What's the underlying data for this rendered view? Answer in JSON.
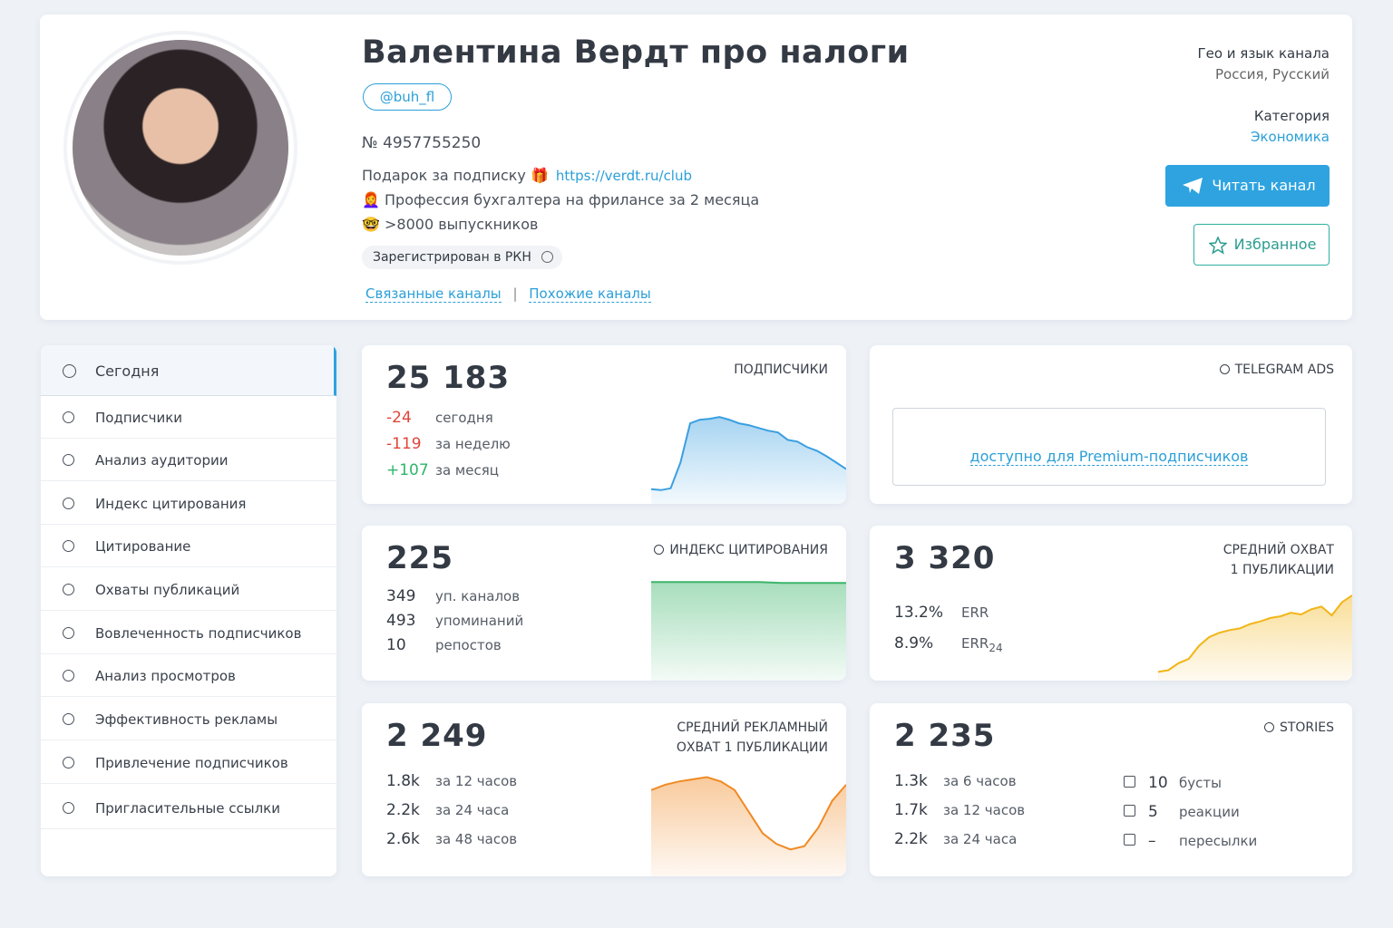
{
  "header": {
    "title": "Валентина Вердт про налоги",
    "username": "@buh_fl",
    "number": "№ 4957755250",
    "description": [
      {
        "text": "Подарок за подписку 🎁",
        "link": "https://verdt.ru/club"
      },
      {
        "text": "👩‍🦰 Профессия бухгалтера на фрилансе за 2 месяца"
      },
      {
        "text": "🤓 >8000 выпускников"
      }
    ],
    "badge": "Зарегистрирован в РКН",
    "links": [
      "Связанные каналы",
      "Похожие каналы"
    ],
    "geo_label": "Гео и язык канала",
    "geo_value": "Россия, Русский",
    "category_label": "Категория",
    "category_value": "Экономика",
    "read_button": "Читать канал",
    "favorite_button": "Избранное"
  },
  "sidebar": [
    "Сегодня",
    "Подписчики",
    "Анализ аудитории",
    "Индекс цитирования",
    "Цитирование",
    "Охваты публикаций",
    "Вовлеченность подписчиков",
    "Анализ просмотров",
    "Эффективность рекламы",
    "Привлечение подписчиков",
    "Пригласительные ссылки"
  ],
  "cards": {
    "subscribers": {
      "value": "25 183",
      "label": [
        "ПОДПИСЧИКИ"
      ],
      "rows": [
        [
          "-24",
          "сегодня"
        ],
        [
          "-119",
          "за неделю"
        ],
        [
          "+107",
          "за месяц"
        ]
      ],
      "color": "#3a9fe0",
      "sparkline": [
        16,
        15,
        17,
        45,
        88,
        92,
        93,
        95,
        92,
        88,
        86,
        83,
        80,
        78,
        70,
        68,
        62,
        58,
        52,
        45,
        38
      ]
    },
    "ads": {
      "label": "TELEGRAM ADS",
      "note": "доступно для Premium-подписчиков"
    },
    "citation": {
      "value": "225",
      "label": [
        "ИНДЕКС ЦИТИРОВАНИЯ"
      ],
      "rows": [
        [
          "349",
          "уп. каналов"
        ],
        [
          "493",
          "упоминаний"
        ],
        [
          "10",
          "репостов"
        ]
      ],
      "color": "#3cb56a",
      "sparkline": [
        98,
        98,
        98,
        98,
        98,
        98,
        97,
        97,
        97,
        97
      ]
    },
    "reach": {
      "value": "3 320",
      "label": [
        "СРЕДНИЙ ОХВАТ",
        "1 ПУБЛИКАЦИИ"
      ],
      "rows": [
        [
          "13.2%",
          "ERR"
        ],
        [
          "8.9%",
          "ERR",
          "24"
        ]
      ],
      "color": "#f2b518",
      "sparkline": [
        10,
        12,
        20,
        25,
        40,
        50,
        55,
        58,
        60,
        65,
        68,
        72,
        74,
        78,
        76,
        82,
        85,
        75,
        90,
        98
      ]
    },
    "ad_reach": {
      "value": "2 249",
      "label": [
        "СРЕДНИЙ РЕКЛАМНЫЙ",
        "ОХВАТ 1 ПУБЛИКАЦИИ"
      ],
      "rows": [
        [
          "1.8k",
          "за 12 часов"
        ],
        [
          "2.2k",
          "за 24 часа"
        ],
        [
          "2.6k",
          "за 48 часов"
        ]
      ],
      "color": "#f08a24",
      "sparkline": [
        80,
        85,
        88,
        90,
        92,
        88,
        80,
        60,
        40,
        30,
        25,
        28,
        45,
        70,
        85
      ]
    },
    "stories": {
      "value": "2 235",
      "label": [
        "STORIES"
      ],
      "rows": [
        [
          "1.3k",
          "за 6 часов"
        ],
        [
          "1.7k",
          "за 12 часов"
        ],
        [
          "2.2k",
          "за 24 часа"
        ]
      ],
      "extra": [
        [
          "10",
          "бусты"
        ],
        [
          "5",
          "реакции"
        ],
        [
          "–",
          "пересылки"
        ]
      ]
    }
  }
}
